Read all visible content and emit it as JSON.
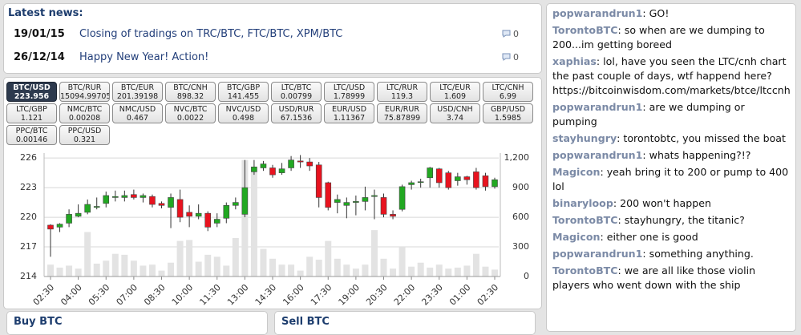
{
  "news": {
    "title": "Latest news:",
    "items": [
      {
        "date": "19/01/15",
        "text": "Closing of tradings on TRC/BTC, FTC/BTC, XPM/BTC",
        "comments": 0
      },
      {
        "date": "26/12/14",
        "text": "Happy New Year! Action!",
        "comments": 0
      }
    ]
  },
  "tickers": [
    {
      "pair": "BTC/USD",
      "price": "223.956",
      "active": true
    },
    {
      "pair": "BTC/RUR",
      "price": "15094.99705"
    },
    {
      "pair": "BTC/EUR",
      "price": "201.39198"
    },
    {
      "pair": "BTC/CNH",
      "price": "898.32"
    },
    {
      "pair": "BTC/GBP",
      "price": "141.455"
    },
    {
      "pair": "LTC/BTC",
      "price": "0.00799"
    },
    {
      "pair": "LTC/USD",
      "price": "1.78999"
    },
    {
      "pair": "LTC/RUR",
      "price": "119.3"
    },
    {
      "pair": "LTC/EUR",
      "price": "1.609"
    },
    {
      "pair": "LTC/CNH",
      "price": "6.99"
    },
    {
      "pair": "LTC/GBP",
      "price": "1.121"
    },
    {
      "pair": "NMC/BTC",
      "price": "0.00208"
    },
    {
      "pair": "NMC/USD",
      "price": "0.467"
    },
    {
      "pair": "NVC/BTC",
      "price": "0.0022"
    },
    {
      "pair": "NVC/USD",
      "price": "0.498"
    },
    {
      "pair": "USD/RUR",
      "price": "67.1536"
    },
    {
      "pair": "EUR/USD",
      "price": "1.11367"
    },
    {
      "pair": "EUR/RUR",
      "price": "75.87899"
    },
    {
      "pair": "USD/CNH",
      "price": "3.74"
    },
    {
      "pair": "GBP/USD",
      "price": "1.5985"
    },
    {
      "pair": "PPC/BTC",
      "price": "0.00146"
    },
    {
      "pair": "PPC/USD",
      "price": "0.321"
    }
  ],
  "chart_data": {
    "type": "candlestick",
    "categories": [
      "02:30",
      null,
      null,
      "04:00",
      null,
      null,
      "05:30",
      null,
      null,
      "07:00",
      null,
      null,
      "08:30",
      null,
      null,
      "10:00",
      null,
      null,
      "11:30",
      null,
      null,
      "13:00",
      null,
      null,
      "14:30",
      null,
      null,
      "16:00",
      null,
      null,
      "17:30",
      null,
      null,
      "19:00",
      null,
      null,
      "20:30",
      null,
      null,
      "22:00",
      null,
      null,
      "23:30",
      null,
      null,
      "01:00",
      null,
      null,
      "02:30"
    ],
    "open": [
      219.2,
      219.0,
      219.4,
      220.1,
      220.5,
      221.0,
      221.4,
      222.0,
      222.0,
      222.3,
      222.0,
      222.1,
      221.4,
      221.0,
      221.8,
      220.5,
      220.1,
      220.4,
      219.4,
      219.9,
      221.2,
      220.3,
      224.6,
      225.0,
      225.0,
      224.5,
      225.0,
      225.7,
      225.6,
      225.3,
      223.5,
      221.5,
      221.2,
      221.5,
      221.6,
      222.1,
      222.0,
      220.3,
      220.8,
      223.3,
      223.6,
      224.0,
      224.9,
      224.5,
      223.7,
      224.1,
      224.6,
      224.2,
      223.1
    ],
    "high": [
      219.3,
      219.4,
      220.8,
      221.3,
      221.8,
      222.0,
      222.6,
      222.7,
      222.7,
      222.8,
      222.4,
      222.3,
      221.6,
      222.4,
      222.8,
      221.2,
      221.3,
      220.6,
      220.4,
      221.5,
      222.0,
      225.8,
      225.8,
      225.7,
      225.3,
      225.5,
      226.2,
      226.3,
      226.0,
      225.6,
      223.6,
      222.3,
      222.0,
      222.2,
      223.1,
      222.8,
      222.4,
      220.7,
      223.3,
      223.7,
      223.9,
      225.1,
      225.0,
      224.7,
      224.5,
      224.2,
      225.0,
      224.5,
      224.0
    ],
    "low": [
      216.0,
      218.5,
      219.0,
      220.0,
      220.3,
      220.8,
      221.0,
      221.6,
      221.6,
      221.8,
      221.5,
      221.0,
      220.9,
      218.9,
      219.5,
      219.0,
      219.8,
      218.6,
      219.0,
      219.4,
      220.8,
      220.0,
      224.3,
      224.7,
      224.0,
      224.3,
      224.7,
      225.0,
      224.7,
      221.0,
      220.7,
      220.4,
      219.9,
      220.2,
      220.7,
      219.8,
      220.0,
      219.8,
      220.6,
      222.8,
      223.0,
      223.0,
      223.0,
      222.8,
      223.2,
      223.3,
      222.8,
      222.7,
      222.9
    ],
    "close": [
      218.8,
      219.3,
      220.3,
      220.4,
      221.3,
      221.1,
      222.2,
      222.1,
      222.2,
      222.0,
      222.2,
      221.3,
      221.2,
      222.0,
      220.0,
      220.1,
      220.4,
      219.0,
      219.8,
      221.2,
      221.5,
      223.0,
      225.1,
      225.4,
      224.3,
      224.9,
      225.8,
      225.6,
      225.2,
      222.0,
      221.0,
      221.8,
      221.5,
      221.6,
      222.0,
      222.2,
      220.3,
      220.1,
      223.1,
      223.5,
      223.6,
      225.0,
      223.5,
      223.0,
      224.1,
      223.8,
      223.0,
      223.1,
      223.8
    ],
    "volume": [
      120,
      90,
      110,
      80,
      450,
      130,
      160,
      230,
      220,
      160,
      110,
      120,
      60,
      140,
      360,
      370,
      150,
      220,
      200,
      110,
      390,
      1180,
      1100,
      280,
      180,
      120,
      120,
      60,
      200,
      170,
      360,
      180,
      120,
      80,
      120,
      470,
      180,
      80,
      300,
      100,
      140,
      90,
      120,
      80,
      90,
      110,
      230,
      100,
      70
    ],
    "ylim": [
      214,
      226.5
    ],
    "yticks": [
      214,
      217,
      220,
      223,
      226
    ],
    "y2lim": [
      0,
      1250
    ],
    "y2ticks": [
      0,
      300,
      600,
      900,
      {
        "value": 1200,
        "label": "1,200"
      }
    ],
    "grid": true,
    "up_color": "#22a822",
    "down_color": "#e8131f",
    "volume_color": "#e3e3e3"
  },
  "trade": {
    "buy_title": "Buy BTC",
    "sell_title": "Sell BTC"
  },
  "chat": [
    {
      "user": "popwarandrun1",
      "text": ": GO!"
    },
    {
      "user": "TorontoBTC",
      "text": ": so when are we dumping to 200...im getting boreed"
    },
    {
      "user": "xaphias",
      "text": ": lol, have you seen the LTC/cnh chart the past couple of days, wtf happend here? https://bitcoinwisdom.com/markets/btce/ltccnh"
    },
    {
      "user": "popwarandrun1",
      "text": ": are we dumping or pumping"
    },
    {
      "user": "stayhungry",
      "text": ": torontobtc, you missed the boat"
    },
    {
      "user": "popwarandrun1",
      "text": ": whats happening?!?"
    },
    {
      "user": "Magicon",
      "text": ": yeah bring it to 200 or pump to 400 lol"
    },
    {
      "user": "binaryloop",
      "text": ": 200 won't happen"
    },
    {
      "user": "TorontoBTC",
      "text": ": stayhungry, the titanic?"
    },
    {
      "user": "Magicon",
      "text": ": either one is good"
    },
    {
      "user": "popwarandrun1",
      "text": ": something anything."
    },
    {
      "user": "TorontoBTC",
      "text": ": we are all like those violin players who went down with the ship"
    }
  ]
}
